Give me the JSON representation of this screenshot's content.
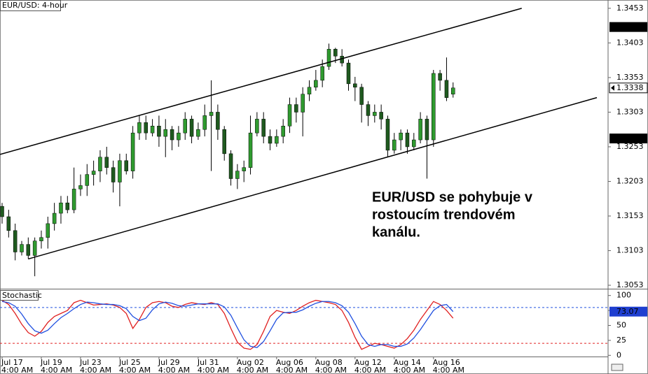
{
  "chart_data": [
    {
      "type": "candlestick",
      "title": "EUR/USD: 4-hour",
      "up_color": "#2f9a2f",
      "down_color": "#1f5a1f",
      "wick_color": "#000000",
      "open": [
        1.3167,
        1.3152,
        1.3132,
        1.3101,
        1.3112,
        1.3096,
        1.3117,
        1.3122,
        1.3142,
        1.3157,
        1.3172,
        1.3162,
        1.3192,
        1.3197,
        1.3213,
        1.3218,
        1.3238,
        1.3223,
        1.3202,
        1.3233,
        1.3218,
        1.3273,
        1.3288,
        1.3273,
        1.3283,
        1.3268,
        1.3278,
        1.3263,
        1.3273,
        1.3293,
        1.3268,
        1.3278,
        1.3298,
        1.3303,
        1.3278,
        1.3243,
        1.3207,
        1.3218,
        1.3223,
        1.3273,
        1.3293,
        1.3268,
        1.3258,
        1.3268,
        1.3283,
        1.3314,
        1.3303,
        1.3329,
        1.3339,
        1.3349,
        1.3369,
        1.3394,
        1.3384,
        1.3374,
        1.3344,
        1.3339,
        1.3314,
        1.3298,
        1.3303,
        1.3293,
        1.3248,
        1.3263,
        1.3273,
        1.3253,
        1.3263,
        1.3293,
        1.3263,
        1.3359,
        1.3349,
        1.3329
      ],
      "high": [
        1.3172,
        1.3162,
        1.3142,
        1.3117,
        1.3122,
        1.3122,
        1.3132,
        1.3152,
        1.3172,
        1.3182,
        1.3182,
        1.3223,
        1.3213,
        1.3228,
        1.3233,
        1.3248,
        1.3253,
        1.3233,
        1.3243,
        1.3243,
        1.3283,
        1.3298,
        1.3298,
        1.3293,
        1.3298,
        1.3293,
        1.3283,
        1.3283,
        1.3303,
        1.3298,
        1.3288,
        1.3314,
        1.3349,
        1.3314,
        1.3283,
        1.3248,
        1.3228,
        1.3233,
        1.3298,
        1.3303,
        1.3303,
        1.3278,
        1.3278,
        1.3293,
        1.3324,
        1.3324,
        1.3339,
        1.3349,
        1.3364,
        1.3379,
        1.3402,
        1.3396,
        1.3394,
        1.3379,
        1.3354,
        1.3344,
        1.3319,
        1.3314,
        1.3314,
        1.3298,
        1.3273,
        1.3278,
        1.3278,
        1.3273,
        1.3303,
        1.3298,
        1.3364,
        1.3364,
        1.3382,
        1.3346
      ],
      "low": [
        1.3142,
        1.3122,
        1.3089,
        1.3096,
        1.3091,
        1.3066,
        1.3106,
        1.3106,
        1.3132,
        1.3142,
        1.3157,
        1.3157,
        1.3182,
        1.3182,
        1.3197,
        1.3202,
        1.3213,
        1.3187,
        1.3167,
        1.3213,
        1.3207,
        1.3263,
        1.3263,
        1.3268,
        1.3253,
        1.3238,
        1.3248,
        1.3253,
        1.3263,
        1.3258,
        1.3263,
        1.3268,
        1.3218,
        1.3263,
        1.3233,
        1.3197,
        1.3192,
        1.3202,
        1.3213,
        1.3268,
        1.3258,
        1.3248,
        1.3253,
        1.3258,
        1.3273,
        1.3288,
        1.3268,
        1.3319,
        1.3334,
        1.3339,
        1.3364,
        1.3374,
        1.3369,
        1.3334,
        1.3319,
        1.3288,
        1.3283,
        1.3288,
        1.3278,
        1.3238,
        1.3243,
        1.3248,
        1.3243,
        1.3248,
        1.3258,
        1.3207,
        1.3253,
        1.3334,
        1.3319,
        1.3324
      ],
      "close": [
        1.3152,
        1.3132,
        1.3101,
        1.3112,
        1.3096,
        1.3117,
        1.3122,
        1.3142,
        1.3157,
        1.3172,
        1.3162,
        1.3192,
        1.3197,
        1.3213,
        1.3218,
        1.3238,
        1.3223,
        1.3202,
        1.3233,
        1.3218,
        1.3273,
        1.3288,
        1.3273,
        1.3283,
        1.3268,
        1.3278,
        1.3263,
        1.3273,
        1.3293,
        1.3268,
        1.3278,
        1.3298,
        1.3303,
        1.3278,
        1.3243,
        1.3207,
        1.3218,
        1.3223,
        1.3273,
        1.3293,
        1.3268,
        1.3258,
        1.3268,
        1.3283,
        1.3314,
        1.3303,
        1.3329,
        1.3339,
        1.3349,
        1.3369,
        1.3394,
        1.3384,
        1.3374,
        1.3344,
        1.3339,
        1.3314,
        1.3298,
        1.3303,
        1.3293,
        1.3248,
        1.3263,
        1.3273,
        1.3253,
        1.3263,
        1.3293,
        1.3263,
        1.3359,
        1.3349,
        1.3324,
        1.3338
      ],
      "ylim": [
        1.3048,
        1.3465
      ],
      "yticks": [
        1.3053,
        1.3103,
        1.3153,
        1.3203,
        1.3253,
        1.3303,
        1.3353,
        1.3403,
        1.3453
      ],
      "price_markers": [
        {
          "value": 1.3426,
          "style": "dark"
        },
        {
          "value": 1.3338,
          "style": "light"
        },
        {
          "value": 1.3265,
          "style": "dark"
        }
      ],
      "trendlines": [
        {
          "from": [
            -0.32,
            1.3242
          ],
          "to": [
            79.5,
            1.3453
          ]
        },
        {
          "from": [
            4,
            1.3091
          ],
          "to": [
            91,
            1.3324
          ]
        }
      ],
      "annotation": [
        "EUR/USD se pohybuje v",
        "rostoucím trendovém",
        "kanálu."
      ]
    },
    {
      "type": "line",
      "title": "Stochastic",
      "series": [
        {
          "color": "#e02020",
          "values": [
            92,
            85,
            70,
            52,
            38,
            32,
            40,
            55,
            65,
            70,
            75,
            88,
            92,
            88,
            84,
            85,
            86,
            84,
            80,
            70,
            45,
            60,
            80,
            88,
            90,
            88,
            82,
            80,
            85,
            88,
            86,
            85,
            88,
            85,
            70,
            45,
            22,
            12,
            10,
            18,
            40,
            65,
            75,
            72,
            70,
            75,
            82,
            88,
            92,
            90,
            88,
            85,
            75,
            55,
            30,
            10,
            15,
            20,
            18,
            15,
            12,
            18,
            28,
            42,
            60,
            75,
            90,
            85,
            75,
            62
          ]
        },
        {
          "color": "#2050e0",
          "values": [
            90,
            88,
            82,
            69,
            53,
            41,
            37,
            42,
            53,
            63,
            70,
            78,
            85,
            89,
            88,
            86,
            85,
            85,
            83,
            78,
            65,
            58,
            62,
            76,
            86,
            89,
            87,
            83,
            82,
            84,
            86,
            86,
            86,
            86,
            81,
            67,
            46,
            26,
            15,
            13,
            23,
            41,
            60,
            71,
            72,
            72,
            76,
            82,
            87,
            90,
            90,
            88,
            83,
            72,
            53,
            32,
            18,
            15,
            18,
            18,
            15,
            15,
            19,
            29,
            43,
            59,
            75,
            83,
            85,
            73.07
          ]
        }
      ],
      "ylim": [
        -2,
        109
      ],
      "yticks": [
        0,
        25,
        50,
        75,
        100
      ],
      "levels": [
        {
          "value": 80,
          "color": "#2050e0"
        },
        {
          "value": 20,
          "color": "#e02020"
        }
      ],
      "price_markers": [
        {
          "value": 73.07,
          "style": "blue"
        }
      ],
      "xticks": [
        {
          "value": 0,
          "label": "Jul 17",
          "time": "4:00 AM"
        },
        {
          "value": 6,
          "label": "Jul 19",
          "time": "4:00 AM"
        },
        {
          "value": 12,
          "label": "Jul 23",
          "time": "4:00 AM"
        },
        {
          "value": 18,
          "label": "Jul 25",
          "time": "4:00 AM"
        },
        {
          "value": 24,
          "label": "Jul 29",
          "time": "4:00 AM"
        },
        {
          "value": 30,
          "label": "Jul 31",
          "time": "4:00 AM"
        },
        {
          "value": 36,
          "label": "Aug 02",
          "time": "4:00 AM"
        },
        {
          "value": 42,
          "label": "Aug 06",
          "time": "4:00 AM"
        },
        {
          "value": 48,
          "label": "Aug 08",
          "time": "4:00 AM"
        },
        {
          "value": 54,
          "label": "Aug 12",
          "time": "4:00 AM"
        },
        {
          "value": 60,
          "label": "Aug 14",
          "time": "4:00 AM"
        },
        {
          "value": 66,
          "label": "Aug 16",
          "time": "4:00 AM"
        }
      ]
    }
  ]
}
